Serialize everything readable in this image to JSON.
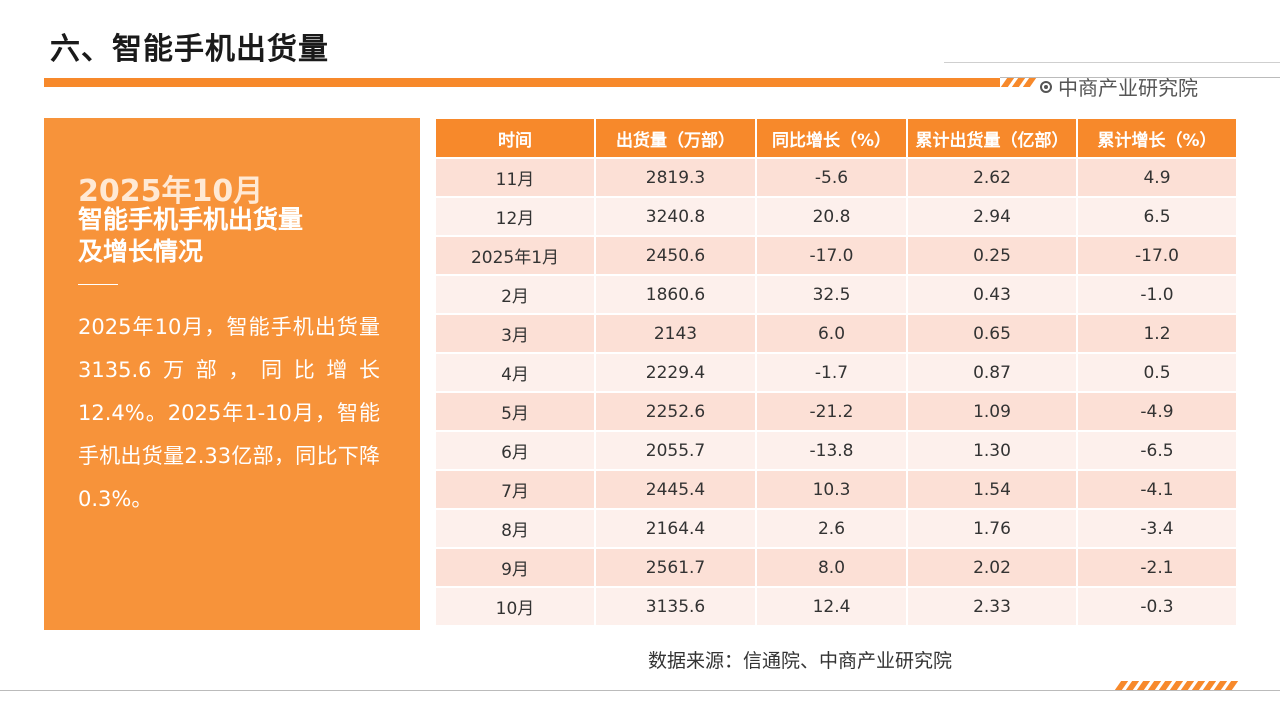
{
  "header": {
    "title": "六、智能手机出货量",
    "brand": "中商产业研究院"
  },
  "panel": {
    "date": "2025年10月",
    "heading_line1": "智能手机手机出货量",
    "heading_line2": "及增长情况",
    "body": "2025年10月，智能手机出货量3135.6万部，同比增长12.4%。2025年1-10月，智能手机出货量2.33亿部，同比下降0.3%。"
  },
  "table": {
    "headers": [
      "时间",
      "出货量（万部）",
      "同比增长（%）",
      "累计出货量（亿部）",
      "累计增长（%）"
    ],
    "rows": [
      [
        "11月",
        "2819.3",
        "-5.6",
        "2.62",
        "4.9"
      ],
      [
        "12月",
        "3240.8",
        "20.8",
        "2.94",
        "6.5"
      ],
      [
        "2025年1月",
        "2450.6",
        "-17.0",
        "0.25",
        "-17.0"
      ],
      [
        "2月",
        "1860.6",
        "32.5",
        "0.43",
        "-1.0"
      ],
      [
        "3月",
        "2143",
        "6.0",
        "0.65",
        "1.2"
      ],
      [
        "4月",
        "2229.4",
        "-1.7",
        "0.87",
        "0.5"
      ],
      [
        "5月",
        "2252.6",
        "-21.2",
        "1.09",
        "-4.9"
      ],
      [
        "6月",
        "2055.7",
        "-13.8",
        "1.30",
        "-6.5"
      ],
      [
        "7月",
        "2445.4",
        "10.3",
        "1.54",
        "-4.1"
      ],
      [
        "8月",
        "2164.4",
        "2.6",
        "1.76",
        "-3.4"
      ],
      [
        "9月",
        "2561.7",
        "8.0",
        "2.02",
        "-2.1"
      ],
      [
        "10月",
        "3135.6",
        "12.4",
        "2.33",
        "-0.3"
      ]
    ]
  },
  "footer": {
    "source": "数据来源：信通院、中商产业研究院"
  },
  "colors": {
    "accent": "#f7892b",
    "panel": "#f7933a",
    "row_dark": "#fce0d6",
    "row_light": "#fdf0ec"
  },
  "icons": {
    "brand": "circle-dot-icon"
  }
}
